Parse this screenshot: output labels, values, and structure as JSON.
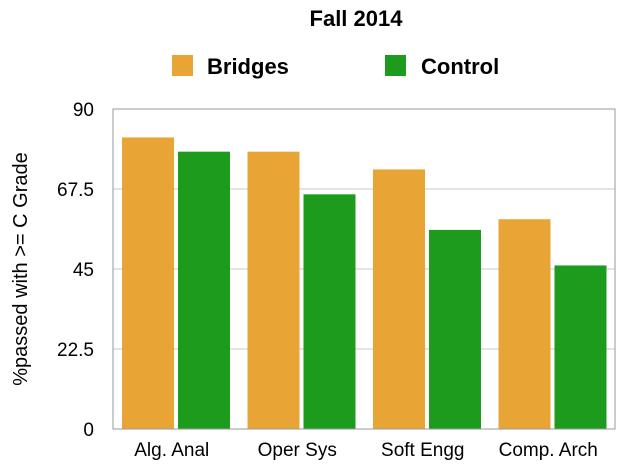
{
  "chart_data": {
    "type": "bar",
    "title": "Fall 2014",
    "ylabel": "%passed with >= C Grade",
    "xlabel": "",
    "categories": [
      "Alg. Anal",
      "Oper Sys",
      "Soft Engg",
      "Comp. Arch"
    ],
    "series": [
      {
        "name": "Bridges",
        "color": "#e8a435",
        "values": [
          82,
          78,
          73,
          59
        ]
      },
      {
        "name": "Control",
        "color": "#1c9b1c",
        "values": [
          78,
          66,
          56,
          46
        ]
      }
    ],
    "ylim": [
      0,
      90
    ],
    "yticks": [
      "0",
      "22.5",
      "45",
      "67.5",
      "90"
    ],
    "ytick_values": [
      0,
      22.5,
      45,
      67.5,
      90
    ],
    "grid": true,
    "legend_position": "top"
  }
}
